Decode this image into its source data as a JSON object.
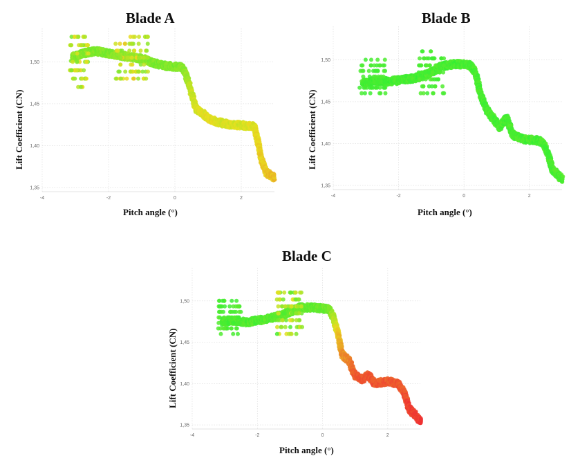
{
  "chart_data": [
    {
      "id": "A",
      "type": "scatter",
      "title": "Blade A",
      "xlabel": "Pitch angle (°)",
      "ylabel": "Lift Coefficient (CN)",
      "xlim": [
        -4,
        3
      ],
      "ylim": [
        1.345,
        1.54
      ],
      "xticks": [
        -4,
        -2,
        0,
        2
      ],
      "yticks": [
        1.35,
        1.4,
        1.45,
        1.5
      ],
      "xtick_labels": [
        "-4",
        "-2",
        "0",
        "2"
      ],
      "ytick_labels": [
        "1,35",
        "1,40",
        "1,45",
        "1,50"
      ],
      "grid": true,
      "colormap": "green-yellow-red",
      "colors": {
        "low": "#33ee33",
        "mid": "#e8e020",
        "high": "#ee3333"
      },
      "curve": [
        [
          -3.1,
          1.505,
          0.22
        ],
        [
          -2.8,
          1.51,
          0.22
        ],
        [
          -2.4,
          1.513,
          0.2
        ],
        [
          -2.0,
          1.51,
          0.2
        ],
        [
          -1.7,
          1.508,
          0.25
        ],
        [
          -1.4,
          1.506,
          0.28
        ],
        [
          -1.0,
          1.504,
          0.25
        ],
        [
          -0.6,
          1.498,
          0.2
        ],
        [
          -0.2,
          1.495,
          0.2
        ],
        [
          0.2,
          1.494,
          0.22
        ],
        [
          0.3,
          1.488,
          0.25
        ],
        [
          0.45,
          1.47,
          0.35
        ],
        [
          0.55,
          1.455,
          0.42
        ],
        [
          0.65,
          1.443,
          0.45
        ],
        [
          0.85,
          1.438,
          0.48
        ],
        [
          1.0,
          1.432,
          0.5
        ],
        [
          1.3,
          1.428,
          0.48
        ],
        [
          1.7,
          1.425,
          0.45
        ],
        [
          2.1,
          1.424,
          0.45
        ],
        [
          2.4,
          1.423,
          0.48
        ],
        [
          2.5,
          1.405,
          0.52
        ],
        [
          2.6,
          1.385,
          0.55
        ],
        [
          2.75,
          1.368,
          0.58
        ],
        [
          3.0,
          1.362,
          0.6
        ]
      ],
      "noise": [
        0.07,
        0.004
      ],
      "clusters": [
        {
          "x": [
            -3.2,
            -2.6
          ],
          "y": [
            1.47,
            1.53
          ],
          "color": [
            0.15,
            0.55
          ],
          "density": 70
        },
        {
          "x": [
            -1.8,
            -0.8
          ],
          "y": [
            1.48,
            1.53
          ],
          "color": [
            0.2,
            0.6
          ],
          "density": 80
        }
      ]
    },
    {
      "id": "B",
      "type": "scatter",
      "title": "Blade B",
      "xlabel": "Pitch angle (°)",
      "ylabel": "Lift Coefficient (CN)",
      "xlim": [
        -4,
        3
      ],
      "ylim": [
        1.345,
        1.54
      ],
      "xticks": [
        -4,
        -2,
        0,
        2
      ],
      "yticks": [
        1.35,
        1.4,
        1.45,
        1.5
      ],
      "xtick_labels": [
        "-4",
        "-2",
        "0",
        "2"
      ],
      "ytick_labels": [
        "1,35",
        "1,40",
        "1,45",
        "1,50"
      ],
      "grid": true,
      "colormap": "green-yellow-red",
      "colors": {
        "low": "#33ee33",
        "mid": "#e8e020",
        "high": "#ee3333"
      },
      "curve": [
        [
          -3.1,
          1.472,
          0.05
        ],
        [
          -2.7,
          1.475,
          0.05
        ],
        [
          -2.3,
          1.474,
          0.05
        ],
        [
          -1.9,
          1.476,
          0.05
        ],
        [
          -1.5,
          1.478,
          0.05
        ],
        [
          -1.1,
          1.483,
          0.06
        ],
        [
          -0.7,
          1.492,
          0.06
        ],
        [
          -0.3,
          1.495,
          0.05
        ],
        [
          0.2,
          1.494,
          0.05
        ],
        [
          0.35,
          1.485,
          0.06
        ],
        [
          0.5,
          1.46,
          0.06
        ],
        [
          0.7,
          1.44,
          0.06
        ],
        [
          0.9,
          1.43,
          0.06
        ],
        [
          1.1,
          1.42,
          0.06
        ],
        [
          1.3,
          1.43,
          0.06
        ],
        [
          1.5,
          1.41,
          0.06
        ],
        [
          1.8,
          1.405,
          0.06
        ],
        [
          2.2,
          1.404,
          0.06
        ],
        [
          2.4,
          1.402,
          0.06
        ],
        [
          2.55,
          1.39,
          0.06
        ],
        [
          2.7,
          1.37,
          0.07
        ],
        [
          3.0,
          1.357,
          0.07
        ]
      ],
      "noise": [
        0.07,
        0.004
      ],
      "clusters": [
        {
          "x": [
            -3.2,
            -2.4
          ],
          "y": [
            1.46,
            1.5
          ],
          "color": [
            0.02,
            0.08
          ],
          "density": 70
        },
        {
          "x": [
            -1.4,
            -0.6
          ],
          "y": [
            1.46,
            1.51
          ],
          "color": [
            0.02,
            0.1
          ],
          "density": 70
        }
      ]
    },
    {
      "id": "C",
      "type": "scatter",
      "title": "Blade C",
      "xlabel": "Pitch angle (°)",
      "ylabel": "Lift Coefficient (CN)",
      "xlim": [
        -4,
        3
      ],
      "ylim": [
        1.345,
        1.54
      ],
      "xticks": [
        -4,
        -2,
        0,
        2
      ],
      "yticks": [
        1.35,
        1.4,
        1.45,
        1.5
      ],
      "xtick_labels": [
        "-4",
        "-2",
        "0",
        "2"
      ],
      "ytick_labels": [
        "1,35",
        "1,40",
        "1,45",
        "1,50"
      ],
      "grid": true,
      "colormap": "green-yellow-red",
      "colors": {
        "low": "#33ee33",
        "mid": "#e8e020",
        "high": "#ee3333"
      },
      "curve": [
        [
          -3.1,
          1.475,
          0.08
        ],
        [
          -2.7,
          1.476,
          0.08
        ],
        [
          -2.3,
          1.474,
          0.08
        ],
        [
          -1.9,
          1.477,
          0.08
        ],
        [
          -1.5,
          1.48,
          0.1
        ],
        [
          -1.1,
          1.485,
          0.12
        ],
        [
          -0.7,
          1.492,
          0.15
        ],
        [
          -0.3,
          1.492,
          0.12
        ],
        [
          0.2,
          1.49,
          0.15
        ],
        [
          0.35,
          1.478,
          0.35
        ],
        [
          0.5,
          1.455,
          0.6
        ],
        [
          0.6,
          1.435,
          0.72
        ],
        [
          0.8,
          1.428,
          0.75
        ],
        [
          1.0,
          1.41,
          0.88
        ],
        [
          1.2,
          1.405,
          0.9
        ],
        [
          1.4,
          1.41,
          0.88
        ],
        [
          1.6,
          1.4,
          0.9
        ],
        [
          2.0,
          1.403,
          0.88
        ],
        [
          2.3,
          1.4,
          0.88
        ],
        [
          2.5,
          1.39,
          0.9
        ],
        [
          2.65,
          1.37,
          0.95
        ],
        [
          3.0,
          1.355,
          0.98
        ]
      ],
      "noise": [
        0.07,
        0.004
      ],
      "clusters": [
        {
          "x": [
            -3.2,
            -2.5
          ],
          "y": [
            1.46,
            1.5
          ],
          "color": [
            0.02,
            0.12
          ],
          "density": 70
        },
        {
          "x": [
            -1.4,
            -0.6
          ],
          "y": [
            1.46,
            1.51
          ],
          "color": [
            0.05,
            0.5
          ],
          "density": 80
        }
      ]
    }
  ]
}
